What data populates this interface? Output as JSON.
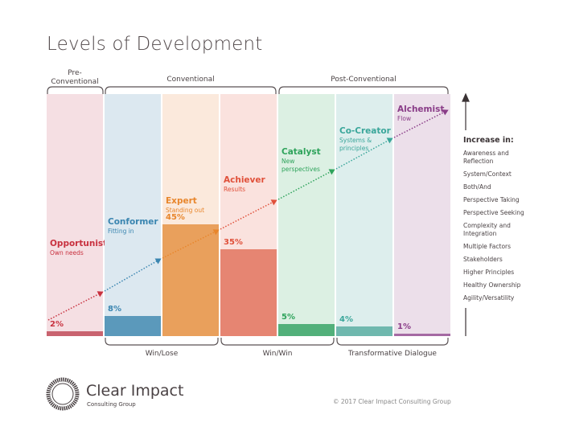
{
  "title": "Levels of Development",
  "groups_top": [
    "Pre-\nConventional",
    "Conventional",
    "Post-Conventional"
  ],
  "groups_bottom": [
    "Win/Lose",
    "Win/Win",
    "Transformative Dialogue"
  ],
  "levels": [
    {
      "name": "Opportunist",
      "desc": "Own needs",
      "percent": 2,
      "pct_label": "2%",
      "bg": "#f5dfe3",
      "bar": "#c9636f",
      "text": "#c8313f"
    },
    {
      "name": "Conformer",
      "desc": "Fitting in",
      "percent": 8,
      "pct_label": "8%",
      "bg": "#dce8f0",
      "bar": "#5b99bb",
      "text": "#3a85b0"
    },
    {
      "name": "Expert",
      "desc": "Standing out",
      "percent": 45,
      "pct_label": "45%",
      "bg": "#fbe9dc",
      "bar": "#e9a05c",
      "text": "#e8862c"
    },
    {
      "name": "Achiever",
      "desc": "Results",
      "percent": 35,
      "pct_label": "35%",
      "bg": "#fae2de",
      "bar": "#e68572",
      "text": "#e0503a"
    },
    {
      "name": "Catalyst",
      "desc": "New perspectives",
      "percent": 5,
      "pct_label": "5%",
      "bg": "#dcf0e3",
      "bar": "#52b07a",
      "text": "#2ea35b"
    },
    {
      "name": "Co-Creator",
      "desc": "Systems & principles",
      "percent": 4,
      "pct_label": "4%",
      "bg": "#ddeeed",
      "bar": "#6fb8ae",
      "text": "#3aa69a"
    },
    {
      "name": "Alchemist",
      "desc": "Flow",
      "percent": 1,
      "pct_label": "1%",
      "bg": "#ecdfea",
      "bar": "#a569a3",
      "text": "#8a3d88"
    }
  ],
  "increase": {
    "heading": "Increase in:",
    "items": [
      "Awareness and Reflection",
      "System/Context",
      "Both/And",
      "Perspective Taking",
      "Perspective Seeking",
      "Complexity and Integration",
      "Multiple Factors",
      "Stakeholders",
      "Higher Principles",
      "Healthy Ownership",
      "Agility/Versatility"
    ]
  },
  "footer": {
    "logo_name": "Clear Impact",
    "logo_sub": "Consulting Group",
    "copyright": "© 2017 Clear Impact Consulting Group"
  }
}
